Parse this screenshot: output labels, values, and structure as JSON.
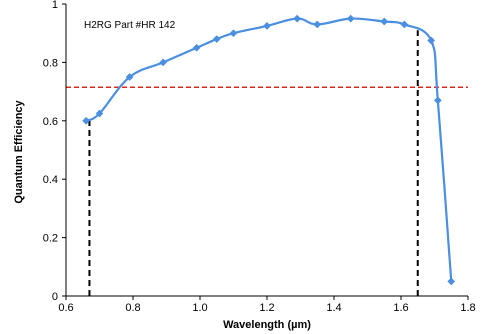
{
  "chart_data": {
    "type": "line",
    "annotation": "H2RG Part  #HR 142",
    "xlabel": "Wavelength (µm)",
    "ylabel": "Quantum  Efficiency",
    "xlim": [
      0.6,
      1.8
    ],
    "ylim": [
      0,
      1
    ],
    "x_ticks": [
      0.6,
      0.8,
      1.0,
      1.2,
      1.4,
      1.6,
      1.8
    ],
    "x_tick_labels": [
      "0.6",
      "0.8",
      "1.0",
      "1.2",
      "1.4",
      "1.6",
      "1.8"
    ],
    "y_ticks": [
      0,
      0.2,
      0.4,
      0.6,
      0.8,
      1
    ],
    "y_tick_labels": [
      "0",
      "0.2",
      "0.4",
      "0.6",
      "0.8",
      "1"
    ],
    "grid": false,
    "series": [
      {
        "color": "#4a8fe0",
        "marker": "diamond",
        "smooth": true,
        "points": [
          [
            0.66,
            0.6
          ],
          [
            0.7,
            0.625
          ],
          [
            0.79,
            0.75
          ],
          [
            0.89,
            0.8
          ],
          [
            0.99,
            0.85
          ],
          [
            1.05,
            0.88
          ],
          [
            1.1,
            0.9
          ],
          [
            1.2,
            0.925
          ],
          [
            1.29,
            0.95
          ],
          [
            1.35,
            0.93
          ],
          [
            1.45,
            0.95
          ],
          [
            1.55,
            0.94
          ],
          [
            1.61,
            0.93
          ],
          [
            1.69,
            0.875
          ],
          [
            1.71,
            0.67
          ],
          [
            1.75,
            0.05
          ]
        ]
      }
    ],
    "reference_lines": [
      {
        "orientation": "horizontal",
        "value": 0.715,
        "color": "#e8261c",
        "style": "dashed"
      },
      {
        "orientation": "vertical",
        "value": 0.67,
        "from": 0,
        "to": 0.61,
        "color": "#000000",
        "style": "dashed"
      },
      {
        "orientation": "vertical",
        "value": 1.65,
        "from": 0,
        "to": 0.91,
        "color": "#000000",
        "style": "dashed"
      }
    ]
  }
}
